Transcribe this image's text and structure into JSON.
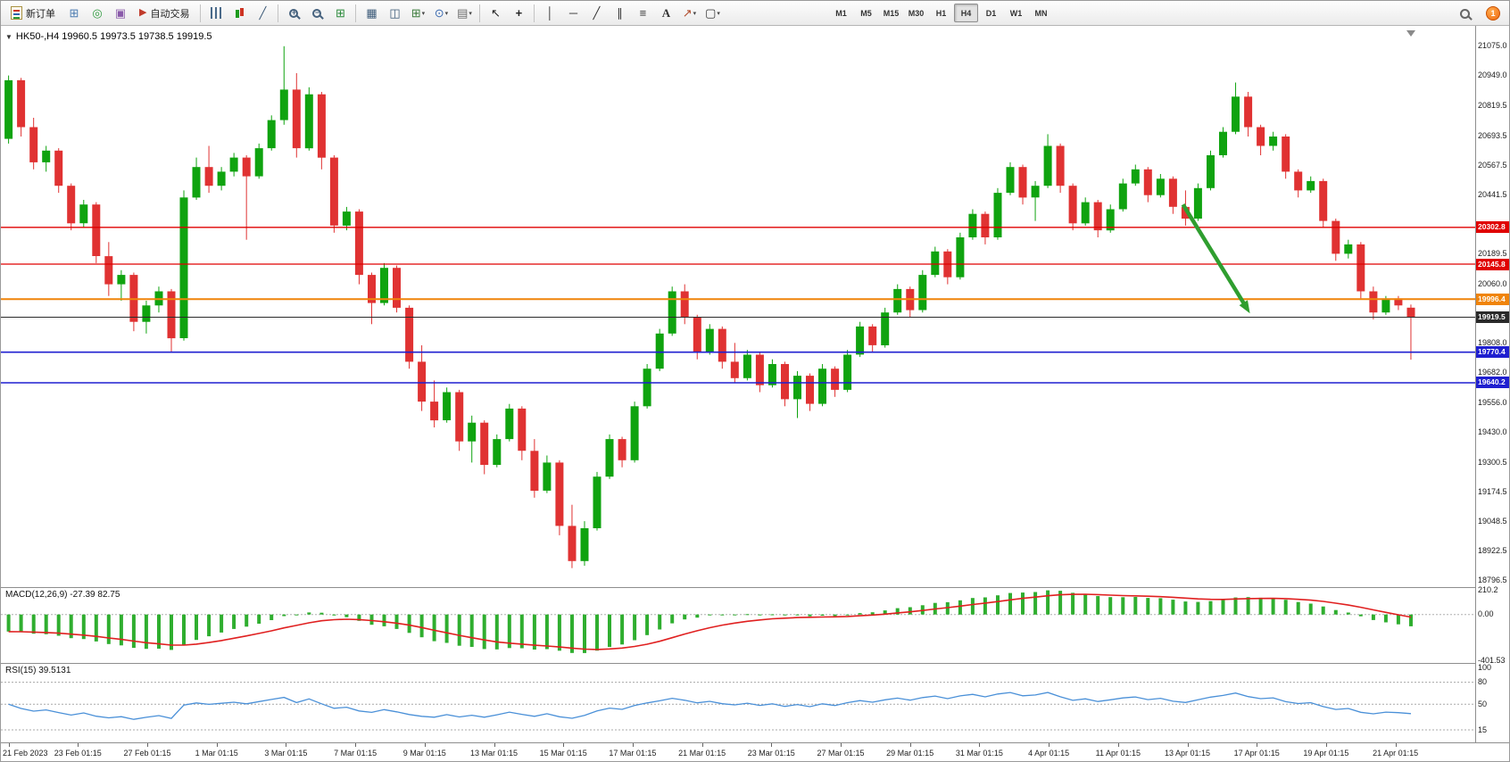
{
  "toolbar": {
    "new_order": "新订单",
    "autotrading": "自动交易",
    "timeframes": [
      "M1",
      "M5",
      "M15",
      "M30",
      "H1",
      "H4",
      "D1",
      "W1",
      "MN"
    ],
    "active_timeframe": "H4",
    "notification_count": "1"
  },
  "chart": {
    "title": "HK50-,H4  19960.5 19973.5 19738.5 19919.5"
  },
  "chart_data": {
    "type": "candlestick",
    "symbol": "HK50-",
    "timeframe": "H4",
    "ohlc_current": {
      "open": 19960.5,
      "high": 19973.5,
      "low": 19738.5,
      "close": 19919.5
    },
    "up_color": "#0fa30f",
    "down_color": "#e03232",
    "price_axis": {
      "visible_high": 21075.0,
      "visible_low": 18796.5,
      "labels": [
        21075.0,
        20949.0,
        20819.5,
        20693.5,
        20567.5,
        20441.5,
        20189.5,
        20060.0,
        19808.0,
        19682.0,
        19556.0,
        19430.0,
        19300.5,
        19174.5,
        19048.5,
        18922.5,
        18796.5
      ]
    },
    "levels": [
      {
        "value": 20302.8,
        "color": "#e00000",
        "width": 1.3,
        "type": "resistance-upper"
      },
      {
        "value": 20145.8,
        "color": "#e00000",
        "width": 1.3,
        "type": "resistance-lower"
      },
      {
        "value": 19996.4,
        "color": "#f0840a",
        "width": 2,
        "type": "pivot"
      },
      {
        "value": 19919.5,
        "color": "#2a2a2a",
        "width": 1,
        "type": "current-price"
      },
      {
        "value": 19770.4,
        "color": "#1f1fd0",
        "width": 1.6,
        "type": "support-upper"
      },
      {
        "value": 19640.2,
        "color": "#1f1fd0",
        "width": 1.6,
        "type": "support-lower"
      }
    ],
    "annotation_arrow": {
      "from": {
        "bar": 93.8,
        "price": 20400
      },
      "to": {
        "bar": 98.7,
        "price": 19975
      },
      "color": "#2f9e2f"
    },
    "time_labels": [
      "21 Feb 2023",
      "23 Feb 01:15",
      "27 Feb 01:15",
      "1 Mar 01:15",
      "3 Mar 01:15",
      "7 Mar 01:15",
      "9 Mar 01:15",
      "13 Mar 01:15",
      "15 Mar 01:15",
      "17 Mar 01:15",
      "21 Mar 01:15",
      "23 Mar 01:15",
      "27 Mar 01:15",
      "29 Mar 01:15",
      "31 Mar 01:15",
      "4 Apr 01:15",
      "11 Apr 01:15",
      "13 Apr 01:15",
      "17 Apr 01:15",
      "19 Apr 01:15",
      "21 Apr 01:15"
    ],
    "candles": [
      [
        20680,
        20950,
        20660,
        20930
      ],
      [
        20930,
        20940,
        20690,
        20730
      ],
      [
        20730,
        20770,
        20550,
        20580
      ],
      [
        20580,
        20650,
        20540,
        20630
      ],
      [
        20630,
        20640,
        20450,
        20480
      ],
      [
        20480,
        20490,
        20290,
        20320
      ],
      [
        20320,
        20420,
        20300,
        20400
      ],
      [
        20400,
        20410,
        20150,
        20180
      ],
      [
        20180,
        20240,
        20010,
        20060
      ],
      [
        20060,
        20120,
        19990,
        20100
      ],
      [
        20100,
        20110,
        19860,
        19900
      ],
      [
        19900,
        19990,
        19850,
        19970
      ],
      [
        19970,
        20050,
        19940,
        20030
      ],
      [
        20030,
        20040,
        19770,
        19830
      ],
      [
        19830,
        20460,
        19820,
        20430
      ],
      [
        20430,
        20600,
        20420,
        20560
      ],
      [
        20560,
        20650,
        20450,
        20480
      ],
      [
        20480,
        20560,
        20460,
        20540
      ],
      [
        20540,
        20620,
        20520,
        20600
      ],
      [
        20600,
        20610,
        20250,
        20520
      ],
      [
        20520,
        20660,
        20510,
        20640
      ],
      [
        20640,
        20780,
        20630,
        20760
      ],
      [
        20760,
        21075,
        20740,
        20890
      ],
      [
        20890,
        20960,
        20600,
        20640
      ],
      [
        20640,
        20900,
        20630,
        20870
      ],
      [
        20870,
        20880,
        20550,
        20600
      ],
      [
        20600,
        20610,
        20280,
        20310
      ],
      [
        20310,
        20390,
        20290,
        20370
      ],
      [
        20370,
        20380,
        20060,
        20100
      ],
      [
        20100,
        20110,
        19890,
        19980
      ],
      [
        19980,
        20150,
        19970,
        20130
      ],
      [
        20130,
        20140,
        19940,
        19960
      ],
      [
        19960,
        19970,
        19700,
        19730
      ],
      [
        19730,
        19800,
        19520,
        19560
      ],
      [
        19560,
        19650,
        19450,
        19480
      ],
      [
        19480,
        19620,
        19470,
        19600
      ],
      [
        19600,
        19610,
        19350,
        19390
      ],
      [
        19390,
        19500,
        19300,
        19470
      ],
      [
        19470,
        19480,
        19250,
        19290
      ],
      [
        19290,
        19420,
        19280,
        19400
      ],
      [
        19400,
        19550,
        19390,
        19530
      ],
      [
        19530,
        19540,
        19310,
        19350
      ],
      [
        19350,
        19400,
        19150,
        19180
      ],
      [
        19180,
        19330,
        19170,
        19300
      ],
      [
        19300,
        19310,
        18990,
        19030
      ],
      [
        19030,
        19120,
        18850,
        18880
      ],
      [
        18880,
        19050,
        18860,
        19020
      ],
      [
        19020,
        19260,
        19010,
        19240
      ],
      [
        19240,
        19420,
        19230,
        19400
      ],
      [
        19400,
        19410,
        19280,
        19310
      ],
      [
        19310,
        19560,
        19300,
        19540
      ],
      [
        19540,
        19720,
        19530,
        19700
      ],
      [
        19700,
        19870,
        19690,
        19850
      ],
      [
        19850,
        20050,
        19840,
        20030
      ],
      [
        20030,
        20060,
        19890,
        19920
      ],
      [
        19920,
        19930,
        19740,
        19770
      ],
      [
        19770,
        19890,
        19760,
        19870
      ],
      [
        19870,
        19880,
        19700,
        19730
      ],
      [
        19730,
        19810,
        19640,
        19660
      ],
      [
        19660,
        19780,
        19650,
        19760
      ],
      [
        19760,
        19770,
        19600,
        19630
      ],
      [
        19630,
        19740,
        19620,
        19720
      ],
      [
        19720,
        19730,
        19540,
        19570
      ],
      [
        19570,
        19690,
        19490,
        19670
      ],
      [
        19670,
        19680,
        19520,
        19550
      ],
      [
        19550,
        19720,
        19540,
        19700
      ],
      [
        19700,
        19710,
        19580,
        19610
      ],
      [
        19610,
        19780,
        19600,
        19760
      ],
      [
        19760,
        19900,
        19750,
        19880
      ],
      [
        19880,
        19890,
        19770,
        19800
      ],
      [
        19800,
        19960,
        19790,
        19940
      ],
      [
        19940,
        20060,
        19930,
        20040
      ],
      [
        20040,
        20050,
        19920,
        19950
      ],
      [
        19950,
        20120,
        19940,
        20100
      ],
      [
        20100,
        20220,
        20090,
        20200
      ],
      [
        20200,
        20210,
        20060,
        20090
      ],
      [
        20090,
        20280,
        20080,
        20260
      ],
      [
        20260,
        20380,
        20250,
        20360
      ],
      [
        20360,
        20370,
        20230,
        20260
      ],
      [
        20260,
        20470,
        20250,
        20450
      ],
      [
        20450,
        20580,
        20440,
        20560
      ],
      [
        20560,
        20570,
        20400,
        20430
      ],
      [
        20430,
        20500,
        20330,
        20480
      ],
      [
        20480,
        20700,
        20470,
        20650
      ],
      [
        20650,
        20660,
        20450,
        20480
      ],
      [
        20480,
        20490,
        20290,
        20320
      ],
      [
        20320,
        20430,
        20310,
        20410
      ],
      [
        20410,
        20420,
        20260,
        20290
      ],
      [
        20290,
        20400,
        20280,
        20380
      ],
      [
        20380,
        20510,
        20370,
        20490
      ],
      [
        20490,
        20570,
        20480,
        20550
      ],
      [
        20550,
        20560,
        20410,
        20440
      ],
      [
        20440,
        20530,
        20430,
        20510
      ],
      [
        20510,
        20520,
        20360,
        20390
      ],
      [
        20390,
        20460,
        20310,
        20340
      ],
      [
        20340,
        20490,
        20330,
        20470
      ],
      [
        20470,
        20630,
        20460,
        20610
      ],
      [
        20610,
        20730,
        20600,
        20710
      ],
      [
        20710,
        20920,
        20700,
        20860
      ],
      [
        20860,
        20880,
        20690,
        20730
      ],
      [
        20730,
        20740,
        20610,
        20650
      ],
      [
        20650,
        20710,
        20630,
        20690
      ],
      [
        20690,
        20700,
        20510,
        20540
      ],
      [
        20540,
        20550,
        20430,
        20460
      ],
      [
        20460,
        20520,
        20450,
        20500
      ],
      [
        20500,
        20510,
        20300,
        20330
      ],
      [
        20330,
        20340,
        20160,
        20190
      ],
      [
        20190,
        20250,
        20170,
        20230
      ],
      [
        20230,
        20240,
        20000,
        20030
      ],
      [
        20030,
        20050,
        19910,
        19940
      ],
      [
        19940,
        20010,
        19930,
        20000
      ],
      [
        20000,
        20010,
        19950,
        19970
      ],
      [
        19960.5,
        19973.5,
        19738.5,
        19919.5
      ]
    ],
    "indicators": {
      "macd": {
        "text": "MACD(12,26,9) -27.39 82.75",
        "label": "MACD(12,26,9)",
        "fast": 12,
        "slow": 26,
        "signal": 9,
        "main_current": -27.39,
        "signal_current": 82.75,
        "axis_labels": [
          "210.2",
          "0.00",
          "-401.53"
        ],
        "histogram_color": "#2fae2f",
        "signal_color": "#e02020"
      },
      "rsi": {
        "text": "RSI(15) 39.5131",
        "label": "RSI(15)",
        "period": 15,
        "current": 39.5131,
        "levels": [
          80,
          50,
          15
        ],
        "axis_labels": [
          100,
          80,
          50,
          15
        ],
        "line_color": "#4a90d8"
      }
    }
  }
}
